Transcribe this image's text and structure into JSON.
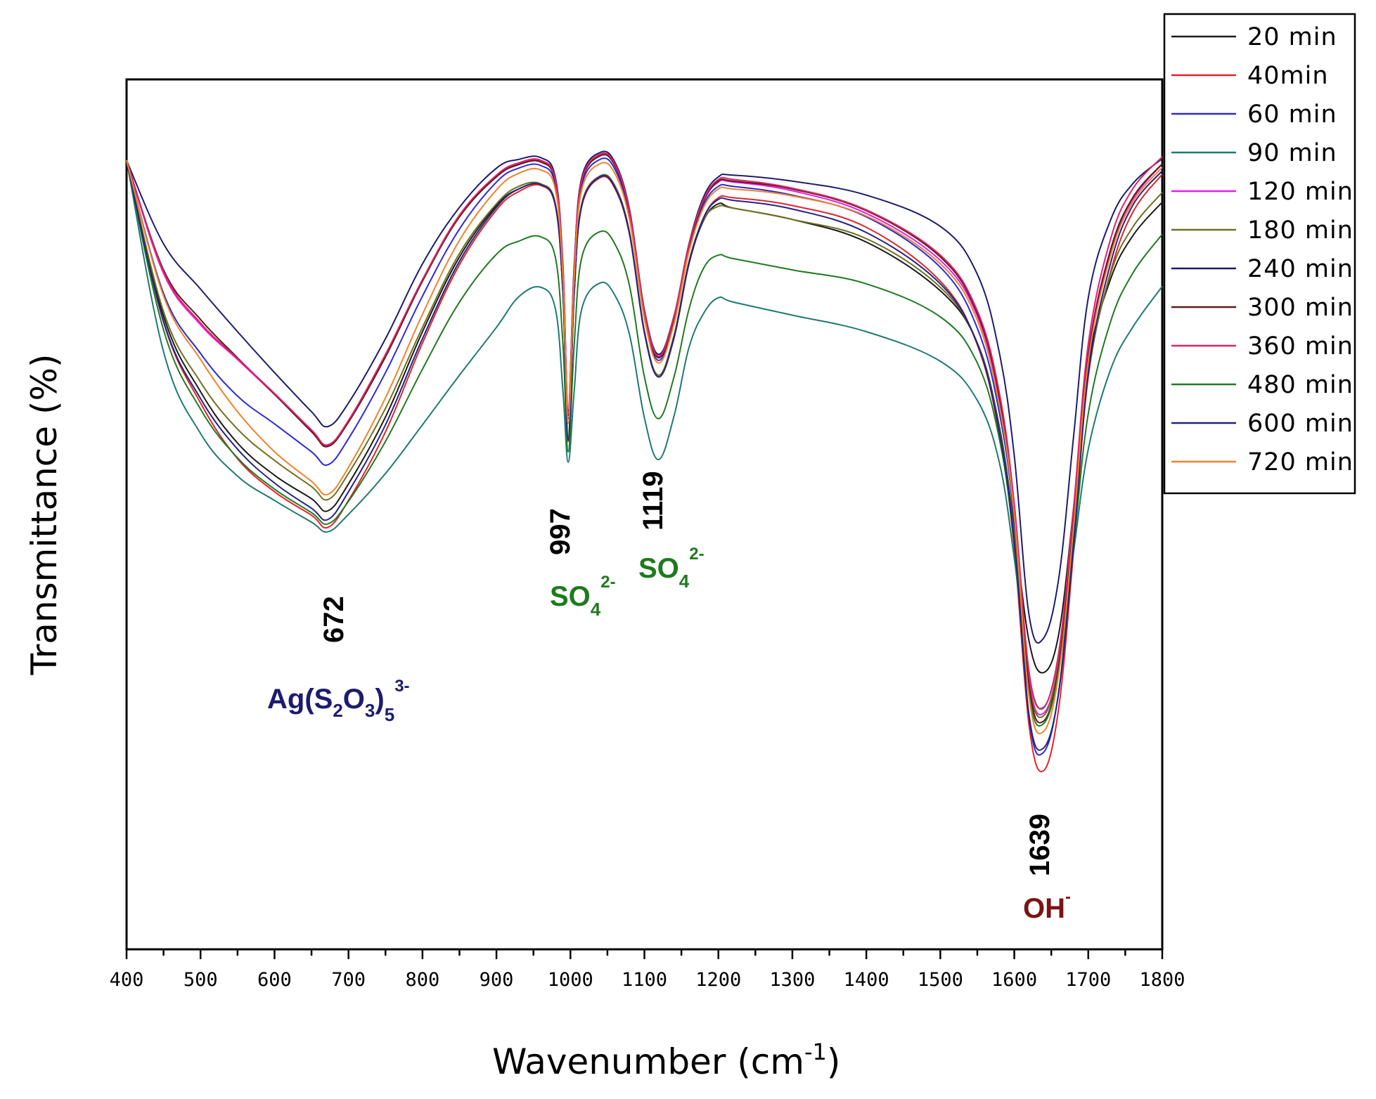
{
  "chart_data": {
    "type": "line",
    "title": "",
    "xlabel": "Wavenumber (cm",
    "xlabel_sup": "-1",
    "xlabel_close": ")",
    "ylabel": "Transmittance (%)",
    "xlim": [
      400,
      1800
    ],
    "ylim": [
      0,
      100
    ],
    "yticks_shown": false,
    "grid": false,
    "legend_position": "top-right, outside plot",
    "x_ticks": [
      "400",
      "500",
      "600",
      "700",
      "800",
      "900",
      "1000",
      "1100",
      "1200",
      "1300",
      "1400",
      "1500",
      "1600",
      "1700",
      "1800"
    ],
    "x_tick_values": [
      400,
      500,
      600,
      700,
      800,
      900,
      1000,
      1100,
      1200,
      1300,
      1400,
      1500,
      1600,
      1700,
      1800
    ],
    "x": [
      400,
      450,
      500,
      550,
      600,
      650,
      672,
      700,
      750,
      800,
      850,
      900,
      930,
      960,
      980,
      990,
      997,
      1005,
      1015,
      1040,
      1060,
      1080,
      1100,
      1119,
      1140,
      1160,
      1180,
      1200,
      1220,
      1300,
      1400,
      1500,
      1550,
      1580,
      1600,
      1620,
      1639,
      1660,
      1680,
      1700,
      1730,
      1760,
      1800
    ],
    "series": [
      {
        "name": "20 min",
        "color": "#1a1a1a",
        "values": [
          90.7,
          72.8,
          64.1,
          58.2,
          54.5,
          51.8,
          50.4,
          53.5,
          61.2,
          71.0,
          79.6,
          85.5,
          87.4,
          87.9,
          85.4,
          75.2,
          58.5,
          75.2,
          85.4,
          88.7,
          87.6,
          82.2,
          70.9,
          65.8,
          70.3,
          78.7,
          83.8,
          85.7,
          85.2,
          83.9,
          81.3,
          75.7,
          69.7,
          60.0,
          48.4,
          35.4,
          31.8,
          36.2,
          50.6,
          67.4,
          77.0,
          82.0,
          85.9
        ]
      },
      {
        "name": "40min",
        "color": "#e0262a",
        "values": [
          90.7,
          72.1,
          62.8,
          56.4,
          52.6,
          49.9,
          48.5,
          51.6,
          59.5,
          69.7,
          78.7,
          85.0,
          87.1,
          87.8,
          85.3,
          75.1,
          58.4,
          75.1,
          85.3,
          88.7,
          87.5,
          82.1,
          70.9,
          65.8,
          70.3,
          78.8,
          84.1,
          86.4,
          86.4,
          85.5,
          83.0,
          76.8,
          69.5,
          59.1,
          46.0,
          25.7,
          20.5,
          27.7,
          45.6,
          65.8,
          77.8,
          84.7,
          89.1
        ]
      },
      {
        "name": "60 min",
        "color": "#2b2bd8",
        "values": [
          90.7,
          75.4,
          68.5,
          63.6,
          60.4,
          57.2,
          55.7,
          58.7,
          66.3,
          75.1,
          82.8,
          88.2,
          89.8,
          90.1,
          87.7,
          77.5,
          61.0,
          77.5,
          87.7,
          90.8,
          89.7,
          84.2,
          72.8,
          67.7,
          72.2,
          80.4,
          85.6,
          87.7,
          87.7,
          86.7,
          84.2,
          78.4,
          71.4,
          61.6,
          49.2,
          26.7,
          22.6,
          29.6,
          47.2,
          67.5,
          80.0,
          86.3,
          90.3
        ]
      },
      {
        "name": "90 min",
        "color": "#1e7a72",
        "values": [
          90.7,
          68.7,
          59.3,
          54.4,
          51.6,
          49.1,
          48.0,
          50.0,
          54.7,
          60.3,
          66.0,
          71.5,
          75.0,
          76.1,
          73.5,
          64.0,
          56.0,
          64.0,
          73.5,
          76.6,
          75.2,
          70.6,
          61.1,
          56.3,
          61.3,
          69.1,
          73.1,
          74.9,
          74.4,
          72.9,
          71.0,
          67.6,
          63.1,
          55.9,
          44.9,
          31.4,
          27.7,
          33.7,
          45.6,
          57.5,
          66.6,
          71.5,
          76.2
        ]
      },
      {
        "name": "120 min",
        "color": "#e41ee4",
        "values": [
          90.7,
          77.7,
          71.8,
          67.8,
          63.8,
          59.7,
          57.9,
          60.7,
          68.3,
          76.9,
          84.3,
          88.9,
          90.3,
          90.6,
          88.2,
          78.0,
          61.5,
          78.0,
          88.2,
          91.3,
          90.2,
          84.7,
          73.2,
          68.1,
          72.6,
          80.8,
          86.0,
          88.2,
          88.2,
          87.2,
          84.6,
          79.2,
          72.8,
          63.1,
          50.4,
          31.1,
          27.1,
          33.2,
          49.6,
          68.6,
          80.4,
          86.2,
          90.3
        ]
      },
      {
        "name": "180 min",
        "color": "#707020",
        "values": [
          90.7,
          73.3,
          65.2,
          59.8,
          56.2,
          53.2,
          51.7,
          54.7,
          62.2,
          71.5,
          80.0,
          85.7,
          87.7,
          88.0,
          85.6,
          75.4,
          58.9,
          75.4,
          85.6,
          88.9,
          87.8,
          82.4,
          71.1,
          66.0,
          70.6,
          79.0,
          83.9,
          85.4,
          85.2,
          83.9,
          81.7,
          76.1,
          69.7,
          59.7,
          47.6,
          30.5,
          26.8,
          32.9,
          48.3,
          66.2,
          77.6,
          83.0,
          87.0
        ]
      },
      {
        "name": "240 min",
        "color": "#1c1c6e",
        "values": [
          90.7,
          81.1,
          75.9,
          71.0,
          66.3,
          61.8,
          60.1,
          62.8,
          70.2,
          78.8,
          85.3,
          89.8,
          90.8,
          91.0,
          88.6,
          78.4,
          61.9,
          78.4,
          88.6,
          91.6,
          90.5,
          85.0,
          73.5,
          68.4,
          72.8,
          81.0,
          86.5,
          88.8,
          89.0,
          88.3,
          86.7,
          83.1,
          77.6,
          68.5,
          56.7,
          38.4,
          35.7,
          42.6,
          58.8,
          74.9,
          83.8,
          88.0,
          90.9
        ]
      },
      {
        "name": "300 min",
        "color": "#5c1a1a",
        "values": [
          90.7,
          78.1,
          72.4,
          68.0,
          63.8,
          59.5,
          57.8,
          60.6,
          68.1,
          76.8,
          84.2,
          88.8,
          90.2,
          90.5,
          88.1,
          77.9,
          61.4,
          77.9,
          88.1,
          91.2,
          90.1,
          84.6,
          73.1,
          68.0,
          72.5,
          80.7,
          86.0,
          88.3,
          88.3,
          87.4,
          84.9,
          79.6,
          73.1,
          63.4,
          50.8,
          30.3,
          26.2,
          32.5,
          49.0,
          68.1,
          80.3,
          86.4,
          90.3
        ]
      },
      {
        "name": "360 min",
        "color": "#e02266",
        "values": [
          90.7,
          77.9,
          72.0,
          67.9,
          63.9,
          59.7,
          58.0,
          60.8,
          68.4,
          77.0,
          84.4,
          89.0,
          90.4,
          90.7,
          88.3,
          78.1,
          61.6,
          78.1,
          88.3,
          91.4,
          90.3,
          84.8,
          73.3,
          68.2,
          72.7,
          80.9,
          86.2,
          88.5,
          88.5,
          87.5,
          85.0,
          79.8,
          73.4,
          63.9,
          51.2,
          31.9,
          27.8,
          34.1,
          50.6,
          69.6,
          81.6,
          87.4,
          91.1
        ]
      },
      {
        "name": "480 min",
        "color": "#207a20",
        "values": [
          90.7,
          71.2,
          62.1,
          56.5,
          52.9,
          50.2,
          48.9,
          51.5,
          58.4,
          66.7,
          74.4,
          79.9,
          81.4,
          81.9,
          79.4,
          69.3,
          57.2,
          69.3,
          79.4,
          82.5,
          81.1,
          76.2,
          65.8,
          61.0,
          65.8,
          73.5,
          78.3,
          79.8,
          79.4,
          78.1,
          76.5,
          72.7,
          67.4,
          58.6,
          46.7,
          29.2,
          25.9,
          31.9,
          46.2,
          61.6,
          72.1,
          77.7,
          82.2
        ]
      },
      {
        "name": "600 min",
        "color": "#232385",
        "values": [
          90.7,
          72.2,
          63.3,
          57.5,
          53.6,
          50.7,
          49.4,
          52.6,
          60.3,
          70.2,
          79.1,
          85.3,
          87.4,
          87.9,
          85.4,
          75.2,
          58.6,
          75.2,
          85.4,
          88.8,
          87.6,
          82.2,
          70.9,
          65.8,
          70.3,
          78.8,
          84.1,
          86.2,
          86.1,
          85.1,
          82.4,
          76.5,
          69.6,
          59.4,
          46.9,
          26.9,
          23.1,
          29.5,
          46.4,
          66.2,
          78.8,
          85.5,
          89.5
        ]
      },
      {
        "name": "720 min",
        "color": "#f0832a",
        "values": [
          90.7,
          75.1,
          67.8,
          61.8,
          57.2,
          53.8,
          52.3,
          55.4,
          63.4,
          73.0,
          81.5,
          87.3,
          89.2,
          89.6,
          87.2,
          77.0,
          60.5,
          77.0,
          87.2,
          90.3,
          89.2,
          83.8,
          72.5,
          67.4,
          71.9,
          80.1,
          85.3,
          87.4,
          87.4,
          86.6,
          84.3,
          78.8,
          72.3,
          62.4,
          49.9,
          29.0,
          25.0,
          31.6,
          48.4,
          67.6,
          79.7,
          85.9,
          89.9
        ]
      }
    ],
    "annotations": [
      {
        "id": "a672",
        "wavenumber": 672,
        "label": "672",
        "ion": {
          "base": "Ag(S",
          "sub1": "2",
          "mid1": "O",
          "sub2": "3",
          "mid2": ")",
          "sub3": "5",
          "sup": "3-"
        },
        "color": "#1c1c6e"
      },
      {
        "id": "a997",
        "wavenumber": 997,
        "label": "997",
        "ion": {
          "base": "SO",
          "sub": "4",
          "sup": "2-"
        },
        "color": "#1f7a1f"
      },
      {
        "id": "a1119",
        "wavenumber": 1119,
        "label": "1119",
        "ion": {
          "base": "SO",
          "sub": "4",
          "sup": "2-"
        },
        "color": "#1f7a1f"
      },
      {
        "id": "a1639",
        "wavenumber": 1639,
        "label": "1639",
        "ion": {
          "base": "OH",
          "sup": "-"
        },
        "color": "#7a1414"
      }
    ]
  }
}
